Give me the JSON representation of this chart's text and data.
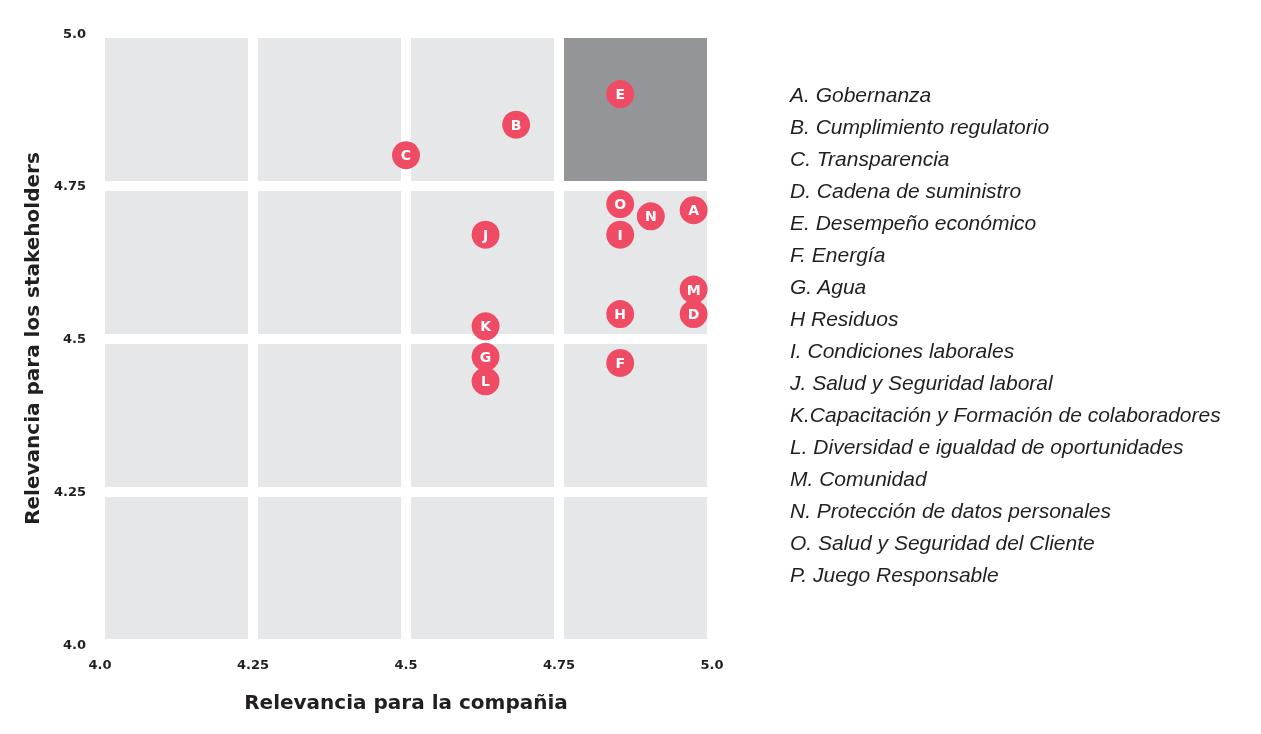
{
  "chart_data": {
    "type": "scatter",
    "xlabel": "Relevancia para la compañia",
    "ylabel": "Relevancia para los stakeholders",
    "xlim": [
      4.0,
      5.0
    ],
    "ylim": [
      4.0,
      5.0
    ],
    "xticks": [
      {
        "value": 4.0,
        "label": "4.0"
      },
      4.25,
      4.5,
      4.75,
      {
        "value": 5.0,
        "label": "5.0"
      }
    ],
    "yticks": [
      {
        "value": 4.0,
        "label": "4.0"
      },
      4.25,
      4.5,
      4.75,
      {
        "value": 5.0,
        "label": "5.0"
      }
    ],
    "grid": true,
    "marker": "circle",
    "series": [
      {
        "color": "#ef4b64",
        "x": [
          4.97,
          4.68,
          4.5,
          4.97,
          4.85,
          4.85,
          4.63,
          4.85,
          4.85,
          4.63,
          4.63,
          4.63,
          4.97,
          4.9,
          4.85
        ],
        "values": [
          4.71,
          4.85,
          4.8,
          4.54,
          4.9,
          4.46,
          4.47,
          4.54,
          4.67,
          4.67,
          4.52,
          4.43,
          4.58,
          4.7,
          4.72
        ],
        "value_labels": [
          "A",
          "B",
          "C",
          "D",
          "E",
          "F",
          "G",
          "H",
          "I",
          "J",
          "K",
          "L",
          "M",
          "N",
          "O"
        ]
      }
    ],
    "annotations": [
      "A. Gobernanza",
      "B. Cumplimiento regulatorio",
      "C. Transparencia",
      "D. Cadena de suministro",
      "E. Desempeño económico",
      "F. Energía",
      "G. Agua",
      "H Residuos",
      "I. Condiciones laborales",
      "J. Salud y Seguridad laboral",
      "K.Capacitación y Formación de colaboradores",
      "L. Diversidad e igualdad de oportunidades",
      "M. Comunidad",
      "N. Protección de datos personales",
      "O. Salud y Seguridad del Cliente",
      "P. Juego Responsable"
    ]
  }
}
